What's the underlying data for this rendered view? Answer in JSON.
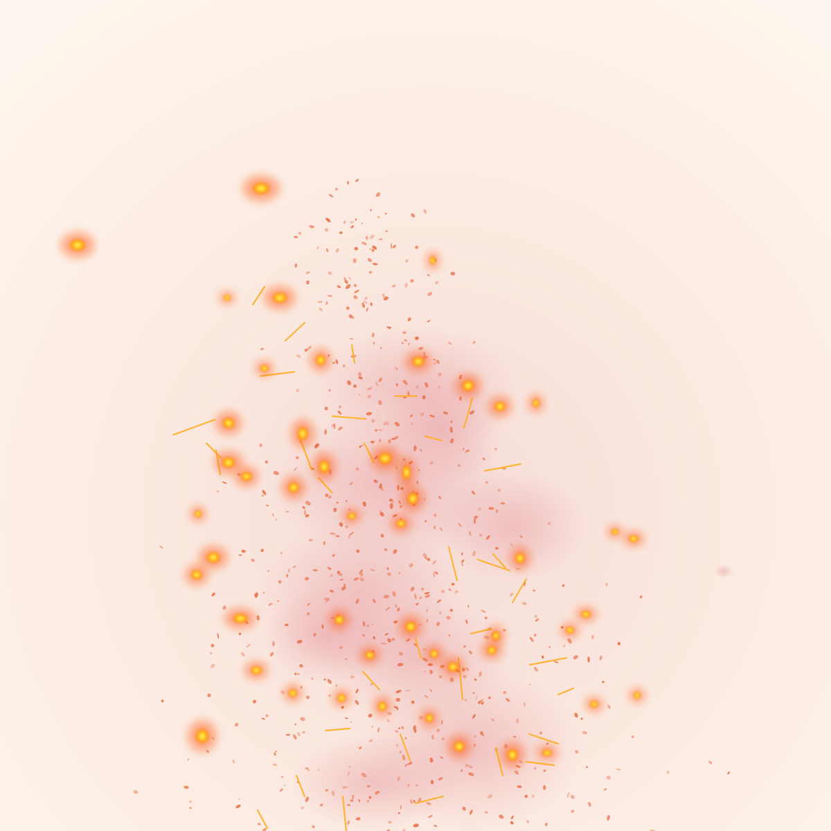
{
  "image": {
    "subject": "",
    "colors": {
      "background": "#fdf3ea",
      "background_center": "#f8dfd8",
      "smoke": "#e9a2a8",
      "ember_core": "#ffd21e",
      "ember_mid": "#ff9a10",
      "ember_glow": "#ff5a0e",
      "fleck": "#e86f45",
      "streak": "#ffb024"
    }
  }
}
